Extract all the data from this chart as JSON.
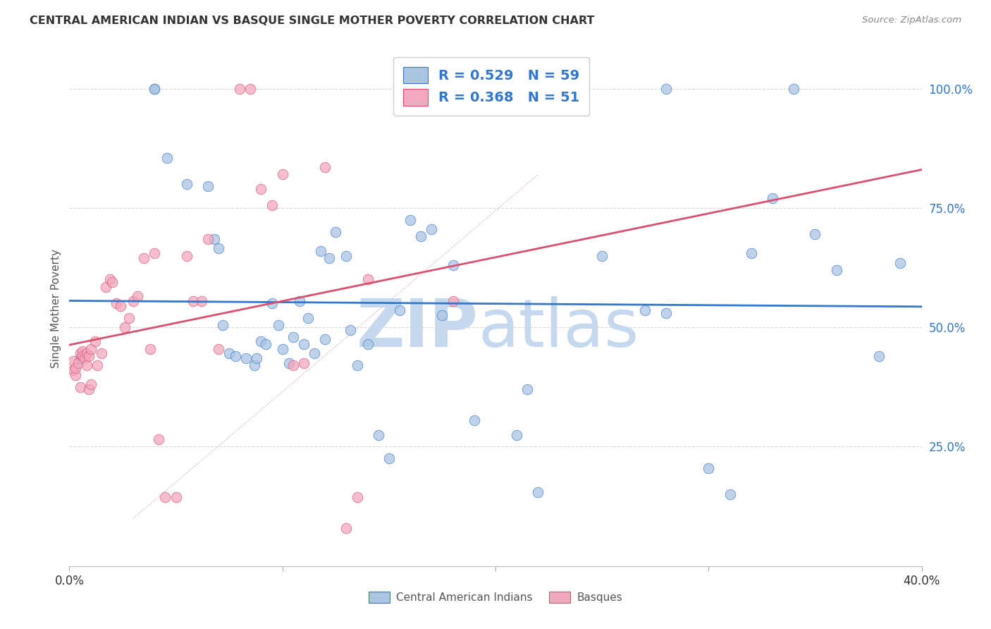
{
  "title": "CENTRAL AMERICAN INDIAN VS BASQUE SINGLE MOTHER POVERTY CORRELATION CHART",
  "source": "Source: ZipAtlas.com",
  "ylabel": "Single Mother Poverty",
  "legend_label1": "Central American Indians",
  "legend_label2": "Basques",
  "R1": 0.529,
  "N1": 59,
  "R2": 0.368,
  "N2": 51,
  "color1": "#aac4e2",
  "color2": "#f2a8be",
  "trend1_color": "#3377cc",
  "trend2_color": "#d95070",
  "watermark_zip_color": "#c5d8ee",
  "watermark_atlas_color": "#c5d8ee",
  "blue_scatter_x": [
    0.005,
    0.005,
    0.04,
    0.04,
    0.046,
    0.055,
    0.065,
    0.068,
    0.07,
    0.072,
    0.075,
    0.078,
    0.083,
    0.087,
    0.088,
    0.09,
    0.092,
    0.095,
    0.098,
    0.1,
    0.103,
    0.105,
    0.108,
    0.11,
    0.112,
    0.115,
    0.118,
    0.12,
    0.122,
    0.125,
    0.13,
    0.132,
    0.135,
    0.14,
    0.145,
    0.15,
    0.155,
    0.16,
    0.165,
    0.17,
    0.175,
    0.18,
    0.19,
    0.21,
    0.215,
    0.22,
    0.25,
    0.27,
    0.28,
    0.3,
    0.31,
    0.32,
    0.33,
    0.34,
    0.35,
    0.36,
    0.38,
    0.39,
    0.28
  ],
  "blue_scatter_y": [
    0.435,
    0.435,
    1.0,
    1.0,
    0.855,
    0.8,
    0.795,
    0.685,
    0.665,
    0.505,
    0.445,
    0.44,
    0.435,
    0.42,
    0.435,
    0.47,
    0.465,
    0.55,
    0.505,
    0.455,
    0.425,
    0.48,
    0.555,
    0.465,
    0.52,
    0.445,
    0.66,
    0.475,
    0.645,
    0.7,
    0.65,
    0.495,
    0.42,
    0.465,
    0.275,
    0.225,
    0.535,
    0.725,
    0.69,
    0.705,
    0.525,
    0.63,
    0.305,
    0.275,
    0.37,
    0.155,
    0.65,
    0.535,
    1.0,
    0.205,
    0.15,
    0.655,
    0.77,
    1.0,
    0.695,
    0.62,
    0.44,
    0.635,
    0.53
  ],
  "pink_scatter_x": [
    0.002,
    0.002,
    0.003,
    0.003,
    0.004,
    0.005,
    0.005,
    0.006,
    0.006,
    0.007,
    0.008,
    0.008,
    0.009,
    0.009,
    0.01,
    0.01,
    0.012,
    0.013,
    0.015,
    0.017,
    0.019,
    0.02,
    0.022,
    0.024,
    0.026,
    0.028,
    0.03,
    0.032,
    0.035,
    0.038,
    0.04,
    0.042,
    0.045,
    0.05,
    0.055,
    0.058,
    0.062,
    0.065,
    0.07,
    0.08,
    0.085,
    0.09,
    0.095,
    0.1,
    0.105,
    0.11,
    0.12,
    0.13,
    0.135,
    0.14,
    0.18
  ],
  "pink_scatter_y": [
    0.41,
    0.43,
    0.4,
    0.415,
    0.425,
    0.445,
    0.375,
    0.45,
    0.44,
    0.435,
    0.42,
    0.445,
    0.44,
    0.37,
    0.455,
    0.38,
    0.47,
    0.42,
    0.445,
    0.585,
    0.6,
    0.595,
    0.55,
    0.545,
    0.5,
    0.52,
    0.555,
    0.565,
    0.645,
    0.455,
    0.655,
    0.265,
    0.145,
    0.145,
    0.65,
    0.555,
    0.555,
    0.685,
    0.455,
    1.0,
    1.0,
    0.79,
    0.755,
    0.82,
    0.42,
    0.425,
    0.835,
    0.08,
    0.145,
    0.6,
    0.555
  ],
  "xlim": [
    0.0,
    0.4
  ],
  "ylim": [
    0.0,
    1.08
  ],
  "ytick_values": [
    0.25,
    0.5,
    0.75,
    1.0
  ],
  "ytick_labels": [
    "25.0%",
    "50.0%",
    "75.0%",
    "100.0%"
  ],
  "xtick_values": [
    0.0,
    0.1,
    0.2,
    0.3,
    0.4
  ],
  "gridline_color": "#d8d8d8",
  "bg_color": "#ffffff",
  "dot_size": 110
}
